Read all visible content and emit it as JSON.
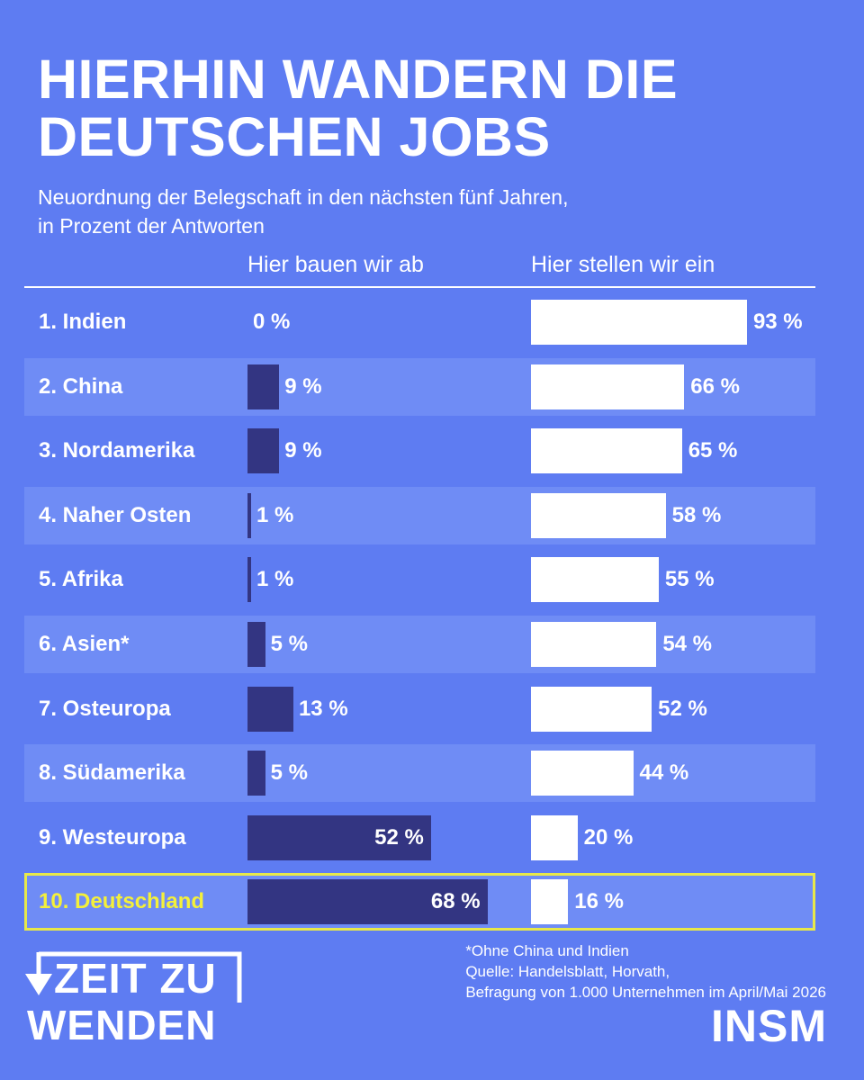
{
  "header": {
    "title_line1": "HIERHIN WANDERN DIE",
    "title_line2": "DEUTSCHEN JOBS",
    "subtitle_line1": "Neuordnung der Belegschaft in den nächsten fünf Jahren,",
    "subtitle_line2": "in Prozent der Antworten"
  },
  "chart_data": {
    "type": "bar",
    "orientation": "horizontal",
    "categories": [
      "1. Indien",
      "2. China",
      "3. Nordamerika",
      "4. Naher Osten",
      "5. Afrika",
      "6. Asien*",
      "7. Osteuropa",
      "8. Südamerika",
      "9. Westeuropa",
      "10. Deutschland"
    ],
    "series": [
      {
        "name": "Hier bauen wir ab",
        "values": [
          0,
          9,
          9,
          1,
          1,
          5,
          13,
          5,
          52,
          68
        ],
        "labels": [
          "0 %",
          "9 %",
          "9 %",
          "1 %",
          "1 %",
          "5 %",
          "13 %",
          "5 %",
          "52 %",
          "68 %"
        ],
        "color": "#333582"
      },
      {
        "name": "Hier stellen wir ein",
        "values": [
          93,
          66,
          65,
          58,
          55,
          54,
          52,
          44,
          20,
          16
        ],
        "labels": [
          "93 %",
          "66 %",
          "65 %",
          "58 %",
          "55 %",
          "54 %",
          "52 %",
          "44 %",
          "20 %",
          "16 %"
        ],
        "color": "#ffffff"
      }
    ],
    "highlight_category": "10. Deutschland",
    "highlight_color": "#f4f03a",
    "background_color": "#5e7cf2",
    "band_color": "#6f8cf5"
  },
  "footer": {
    "note1": "*Ohne China und Indien",
    "note2": "Quelle: Handelsblatt, Horvath,",
    "note3": "Befragung von 1.000 Unternehmen im April/Mai 2026",
    "logo_left_line1": "ZEIT ZU",
    "logo_left_line2": "WENDEN",
    "logo_right": "INSM"
  }
}
